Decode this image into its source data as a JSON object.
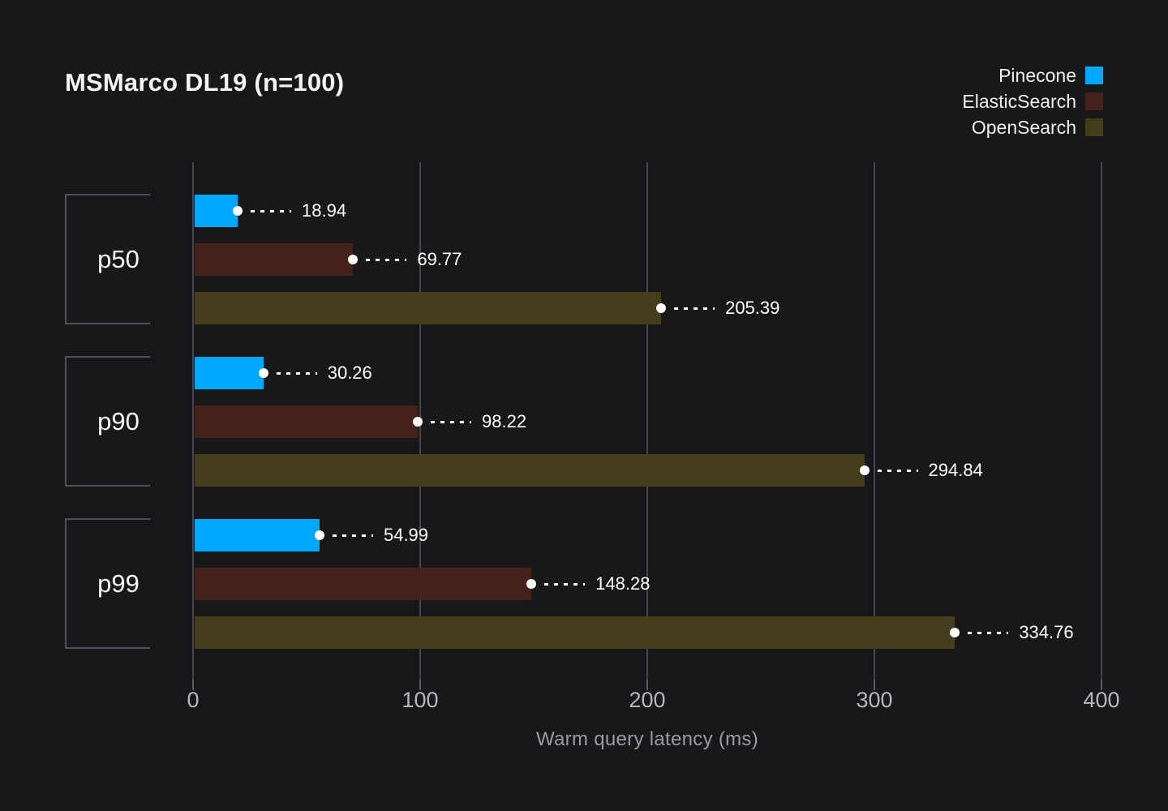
{
  "header": {
    "title": "MSMarco DL19 (n=100)"
  },
  "colors": {
    "background": "#18181b",
    "pinecone_blue": "#00a9ff",
    "elasticsearch_red": "#44211a",
    "opensearch_olive": "#443c1c",
    "gridline": "#45454c",
    "value_label": "#ffffff"
  },
  "legend": {
    "items": [
      {
        "label": "Pinecone",
        "color": "#00a9ff"
      },
      {
        "label": "ElasticSearch",
        "color": "#44211a"
      },
      {
        "label": "OpenSearch",
        "color": "#443c1c"
      }
    ]
  },
  "chart_data": {
    "type": "bar",
    "orientation": "horizontal",
    "title": "MSMarco DL19 (n=100)",
    "categories": [
      "p50",
      "p90",
      "p99"
    ],
    "series": [
      {
        "name": "Pinecone",
        "color": "#00a9ff",
        "values": [
          18.94,
          30.26,
          54.99
        ]
      },
      {
        "name": "ElasticSearch",
        "color": "#44211a",
        "values": [
          69.77,
          98.22,
          148.28
        ]
      },
      {
        "name": "OpenSearch",
        "color": "#443c1c",
        "values": [
          205.39,
          294.84,
          334.76
        ]
      }
    ],
    "value_labels": [
      [
        "18.94",
        "30.26",
        "54.99"
      ],
      [
        "69.77",
        "98.22",
        "148.28"
      ],
      [
        "205.39",
        "294.84",
        "334.76"
      ]
    ],
    "xlabel": "Warm query latency (ms)",
    "xlim": [
      0,
      400
    ],
    "xticks": [
      "0",
      "100",
      "200",
      "300",
      "400"
    ],
    "grid": true,
    "legend_position": "top-right"
  }
}
